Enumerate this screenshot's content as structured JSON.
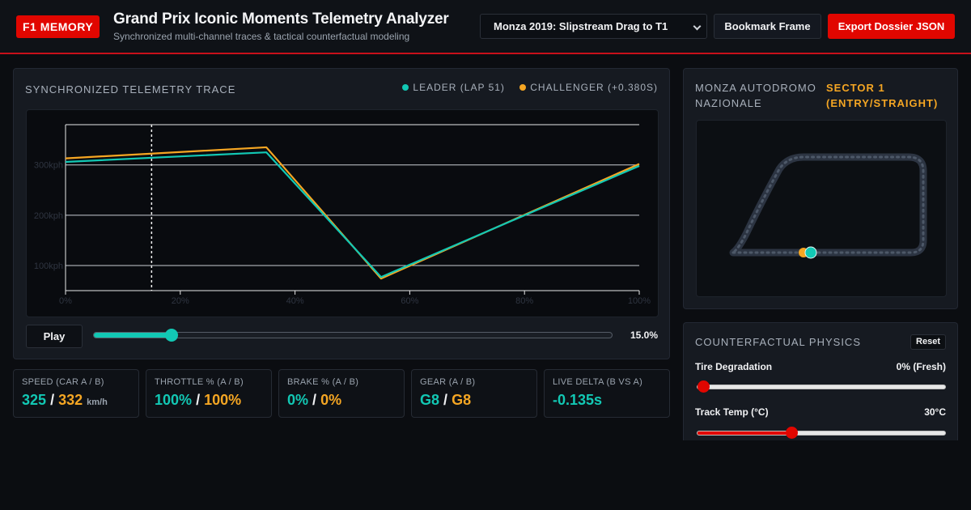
{
  "header": {
    "logo": "F1 MEMORY",
    "title": "Grand Prix Iconic Moments Telemetry Analyzer",
    "subtitle": "Synchronized multi-channel traces & tactical counterfactual modeling",
    "moment_select": "Monza 2019: Slipstream Drag to T1",
    "bookmark_label": "Bookmark Frame",
    "export_label": "Export Dossier JSON"
  },
  "trace": {
    "title": "SYNCHRONIZED TELEMETRY TRACE",
    "legend_leader": "LEADER (LAP 51)",
    "legend_challenger": "CHALLENGER (+0.380S)",
    "play_label": "Play",
    "scrub_fraction": 0.15,
    "scrub_value": "15.0%"
  },
  "colors": {
    "leader": "#12c8b4",
    "challenger": "#f5a623",
    "accent": "#e10600"
  },
  "chart_data": {
    "type": "line",
    "xlabel": "",
    "ylabel": "",
    "x_ticks": [
      "0%",
      "20%",
      "40%",
      "60%",
      "80%",
      "100%"
    ],
    "y_ticks": [
      {
        "value": 100,
        "label": "100kph"
      },
      {
        "value": 200,
        "label": "200kph"
      },
      {
        "value": 300,
        "label": "300kph"
      }
    ],
    "xlim": [
      0,
      100
    ],
    "ylim": [
      50,
      380
    ],
    "grid": true,
    "cursor_x": 15,
    "series": [
      {
        "name": "LEADER (LAP 51)",
        "x": [
          0,
          35,
          55,
          100
        ],
        "y": [
          306,
          325,
          77,
          298
        ]
      },
      {
        "name": "CHALLENGER (+0.380S)",
        "x": [
          0,
          35,
          55,
          100
        ],
        "y": [
          313,
          335,
          74,
          302
        ]
      }
    ]
  },
  "stats": [
    {
      "label": "SPEED (CAR A / B)",
      "a": "325",
      "sep": "/",
      "b": "332",
      "unit": "km/h"
    },
    {
      "label": "THROTTLE % (A / B)",
      "a": "100%",
      "sep": "/",
      "b": "100%",
      "unit": ""
    },
    {
      "label": "BRAKE % (A / B)",
      "a": "0%",
      "sep": "/",
      "b": "0%",
      "unit": ""
    },
    {
      "label": "GEAR (A / B)",
      "a": "G8",
      "sep": "/",
      "b": "G8",
      "unit": ""
    },
    {
      "label": "LIVE DELTA (B VS A)",
      "a": "-0.135s",
      "sep": "",
      "b": "",
      "unit": ""
    }
  ],
  "track": {
    "name": "MONZA AUTODROMO NAZIONALE",
    "sector": "SECTOR 1 (ENTRY/STRAIGHT)"
  },
  "physics": {
    "title": "COUNTERFACTUAL PHYSICS",
    "reset_label": "Reset",
    "tire_label": "Tire Degradation",
    "tire_value": "0% (Fresh)",
    "tire_fraction": 0.0,
    "temp_label": "Track Temp (°C)",
    "temp_value": "30°C",
    "temp_fraction": 0.38
  }
}
